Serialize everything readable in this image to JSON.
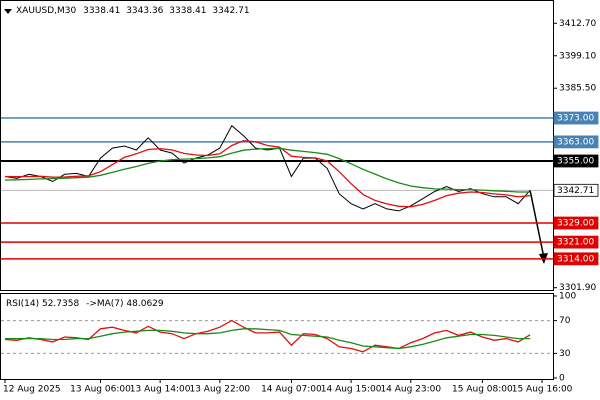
{
  "chart_data": [
    {
      "type": "line",
      "title": "XAUUSD,M30",
      "ohlc": [
        3338.41,
        3343.36,
        3338.41,
        3342.71
      ],
      "categories": [
        "12 Aug 2025",
        null,
        null,
        null,
        null,
        null,
        null,
        null,
        "13 Aug 06:00",
        null,
        null,
        null,
        null,
        "13 Aug 14:00",
        null,
        null,
        null,
        null,
        "13 Aug 22:00",
        null,
        null,
        null,
        null,
        null,
        "14 Aug 07:00",
        null,
        null,
        null,
        null,
        "14 Aug 15:00",
        null,
        null,
        null,
        null,
        "14 Aug 23:00",
        null,
        null,
        null,
        null,
        null,
        "15 Aug 08:00",
        null,
        null,
        null,
        null,
        "15 Aug 16:00",
        null
      ],
      "series": [
        {
          "color": "#000000",
          "values": [
            3348.5,
            3347.7,
            3349.4,
            3348.5,
            3346.4,
            3349.4,
            3349.8,
            3348.5,
            3356.2,
            3360.4,
            3361.3,
            3359.6,
            3364.7,
            3359.6,
            3358.3,
            3354.1,
            3356.2,
            3357.5,
            3360.4,
            3369.8,
            3365.5,
            3360.4,
            3359.6,
            3360.4,
            3348.5,
            3356.2,
            3356.2,
            3351.9,
            3341.3,
            3337.1,
            3334.9,
            3337.1,
            3334.9,
            3334.1,
            3336.2,
            3339.2,
            3342.2,
            3344.3,
            3342.2,
            3343.4,
            3341.3,
            3340.0,
            3340.0,
            3337.1,
            3342.71,
            null,
            null
          ]
        },
        {
          "color": "#e01010",
          "values": [
            3348.5,
            3348.4,
            3348.5,
            3348.6,
            3348.2,
            3348.3,
            3348.6,
            3348.8,
            3350.5,
            3353.5,
            3356.5,
            3358.0,
            3359.8,
            3360.2,
            3359.6,
            3358.2,
            3357.5,
            3357.3,
            3358.0,
            3361.5,
            3363.5,
            3363.0,
            3361.5,
            3360.8,
            3357.0,
            3356.5,
            3356.3,
            3355.0,
            3350.5,
            3345.5,
            3341.0,
            3338.5,
            3337.0,
            3336.0,
            3335.8,
            3336.8,
            3338.5,
            3340.5,
            3341.5,
            3342.0,
            3341.8,
            3341.2,
            3340.8,
            3340.0,
            3340.5,
            null,
            null
          ]
        },
        {
          "color": "#1a8a1a",
          "values": [
            3347.0,
            3347.1,
            3347.3,
            3347.5,
            3347.6,
            3347.8,
            3348.0,
            3348.2,
            3349.0,
            3350.2,
            3351.5,
            3352.7,
            3354.0,
            3355.0,
            3355.6,
            3355.8,
            3356.0,
            3356.3,
            3356.8,
            3358.3,
            3359.5,
            3360.0,
            3360.2,
            3360.3,
            3359.5,
            3359.0,
            3358.5,
            3357.8,
            3356.0,
            3353.8,
            3351.5,
            3349.5,
            3347.5,
            3345.8,
            3344.5,
            3343.8,
            3343.3,
            3343.2,
            3343.0,
            3343.0,
            3342.8,
            3342.5,
            3342.3,
            3342.0,
            3342.0,
            null,
            null
          ]
        }
      ],
      "levels": [
        {
          "value": 3373,
          "label": "3373.00",
          "color": "#4682b4"
        },
        {
          "value": 3363,
          "label": "3363.00",
          "color": "#4682b4"
        },
        {
          "value": 3355,
          "label": "3355.00",
          "color": "#000000"
        },
        {
          "value": 3342.71,
          "label": "3342.71",
          "color": "#b0b0b0"
        },
        {
          "value": 3329,
          "label": "3329.00",
          "color": "#e00000"
        },
        {
          "value": 3321,
          "label": "3321.00",
          "color": "#e00000"
        },
        {
          "value": 3314,
          "label": "3314.00",
          "color": "#e00000"
        }
      ],
      "ylim": [
        3300.93,
        3422.05
      ],
      "yticks": [
        {
          "value": 3412.7,
          "label": "3412.70"
        },
        {
          "value": 3399.1,
          "label": "3399.10"
        },
        {
          "value": 3385.5,
          "label": "3385.50"
        },
        {
          "value": 3301.9,
          "label": "3301.90"
        }
      ]
    },
    {
      "type": "line",
      "title": "RSI(14)",
      "value": 52.7358,
      "ma_label": "->MA(7)",
      "ma_value": 48.0629,
      "series": [
        {
          "color": "#e01010",
          "values": [
            47,
            46,
            49,
            47,
            44,
            50,
            49,
            47,
            60,
            62,
            58,
            55,
            63,
            56,
            54,
            48,
            54,
            57,
            62,
            70,
            62,
            55,
            55,
            56,
            40,
            54,
            53,
            48,
            38,
            36,
            32,
            40,
            38,
            36,
            43,
            48,
            55,
            58,
            52,
            56,
            50,
            46,
            48,
            44,
            52.7358,
            null,
            null
          ]
        },
        {
          "color": "#1a8a1a",
          "values": [
            48,
            48,
            48,
            48,
            47,
            47,
            48,
            48,
            51,
            54,
            56,
            57,
            58,
            58,
            57,
            55,
            54,
            54,
            55,
            58,
            60,
            60,
            59,
            58,
            53,
            52,
            51,
            50,
            46,
            43,
            39,
            38,
            37,
            36,
            38,
            41,
            45,
            49,
            51,
            53,
            53,
            52,
            50,
            48,
            48.0629,
            null,
            null
          ]
        }
      ],
      "ylim": [
        0,
        100
      ],
      "yticks": [
        100,
        70,
        30,
        0
      ]
    }
  ]
}
